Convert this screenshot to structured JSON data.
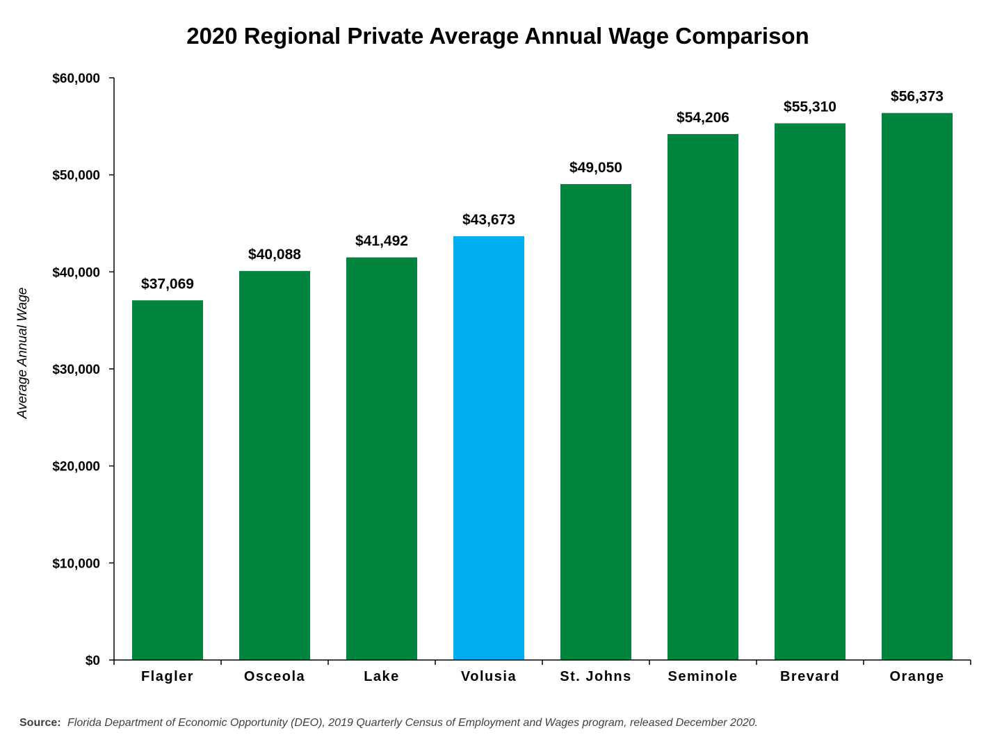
{
  "chart_data": {
    "type": "bar",
    "title": "2020 Regional Private Average Annual Wage Comparison",
    "xlabel": "",
    "ylabel": "Average Annual Wage",
    "ylim": [
      0,
      60000
    ],
    "yticks": [
      0,
      10000,
      20000,
      30000,
      40000,
      50000,
      60000
    ],
    "ytick_labels": [
      "$0",
      "$10,000",
      "$20,000",
      "$30,000",
      "$40,000",
      "$50,000",
      "$60,000"
    ],
    "categories": [
      "Flagler",
      "Osceola",
      "Lake",
      "Volusia",
      "St. Johns",
      "Seminole",
      "Brevard",
      "Orange"
    ],
    "values": [
      37069,
      40088,
      41492,
      43673,
      49050,
      54206,
      55310,
      56373
    ],
    "data_labels": [
      "$37,069",
      "$40,088",
      "$41,492",
      "$43,673",
      "$49,050",
      "$54,206",
      "$55,310",
      "$56,373"
    ],
    "bar_colors": [
      "#00853E",
      "#00853E",
      "#00853E",
      "#00AEEF",
      "#00853E",
      "#00853E",
      "#00853E",
      "#00853E"
    ],
    "grid": false,
    "legend": "none"
  },
  "source": {
    "label": "Source:",
    "text": "Florida Department of Economic Opportunity (DEO), 2019 Quarterly Census of Employment and Wages program, released December 2020."
  }
}
